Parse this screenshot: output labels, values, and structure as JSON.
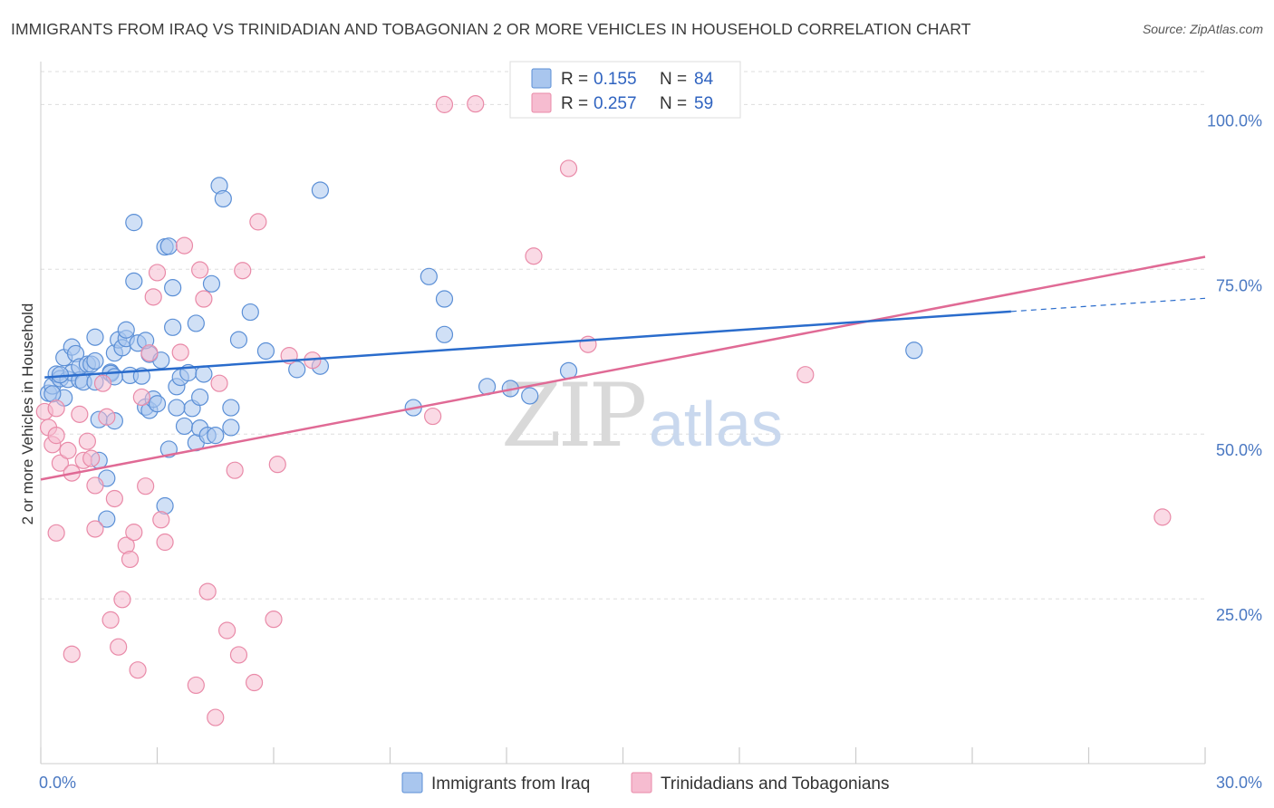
{
  "title": "IMMIGRANTS FROM IRAQ VS TRINIDADIAN AND TOBAGONIAN 2 OR MORE VEHICLES IN HOUSEHOLD CORRELATION CHART",
  "source": "Source: ZipAtlas.com",
  "watermark": {
    "zip": "ZIP",
    "atlas": "atlas"
  },
  "colors": {
    "iraq_fill": "#a9c6ee",
    "iraq_stroke": "#5b8fd6",
    "iraq_line": "#2a6ccc",
    "tt_fill": "#f6bcd0",
    "tt_stroke": "#e98aa8",
    "tt_line": "#e06a95",
    "grid": "#dddddd",
    "tick_text": "#4a78c2"
  },
  "legend": {
    "rows": [
      {
        "r_label": "R = ",
        "r_value": "0.155",
        "n_label": "N = ",
        "n_value": "84"
      },
      {
        "r_label": "R = ",
        "r_value": "0.257",
        "n_label": "N = ",
        "n_value": "59"
      }
    ]
  },
  "chart_data": {
    "type": "scatter",
    "title": "IMMIGRANTS FROM IRAQ VS TRINIDADIAN AND TOBAGONIAN 2 OR MORE VEHICLES IN HOUSEHOLD CORRELATION CHART",
    "xlabel": "",
    "ylabel": "2 or more Vehicles in Household",
    "xlim": [
      0,
      30
    ],
    "ylim": [
      0,
      105
    ],
    "x_tick_labels": [
      "0.0%",
      "30.0%"
    ],
    "y_ticks": [
      25,
      50,
      75,
      100
    ],
    "y_tick_labels": [
      "25.0%",
      "50.0%",
      "75.0%",
      "100.0%"
    ],
    "x_tick_marks": [
      0,
      3,
      6,
      9,
      12,
      15,
      18,
      21,
      24,
      27,
      30
    ],
    "grid": true,
    "legend_position": "top-center",
    "series": [
      {
        "name": "Immigrants from Iraq",
        "trend": {
          "x0": 0.1,
          "y0": 58.6,
          "x1": 25.0,
          "y1": 68.6,
          "dash_x1": 30.0,
          "dash_y1": 70.6
        },
        "points": [
          [
            0.2,
            56.2
          ],
          [
            0.3,
            57.3
          ],
          [
            0.4,
            59.1
          ],
          [
            0.5,
            58.4
          ],
          [
            0.6,
            55.5
          ],
          [
            0.6,
            61.6
          ],
          [
            0.7,
            58.3
          ],
          [
            0.8,
            63.2
          ],
          [
            0.8,
            59.3
          ],
          [
            0.9,
            62.2
          ],
          [
            1.0,
            58.2
          ],
          [
            1.0,
            60.2
          ],
          [
            1.1,
            57.9
          ],
          [
            1.2,
            60.6
          ],
          [
            1.3,
            60.6
          ],
          [
            1.4,
            61.1
          ],
          [
            1.4,
            64.7
          ],
          [
            1.4,
            57.9
          ],
          [
            1.5,
            46.0
          ],
          [
            1.5,
            52.2
          ],
          [
            1.7,
            43.3
          ],
          [
            1.7,
            37.1
          ],
          [
            1.8,
            59.4
          ],
          [
            1.8,
            59.2
          ],
          [
            1.9,
            62.3
          ],
          [
            1.9,
            52.0
          ],
          [
            2.0,
            64.3
          ],
          [
            2.1,
            63.1
          ],
          [
            2.2,
            64.5
          ],
          [
            2.2,
            65.8
          ],
          [
            2.3,
            58.9
          ],
          [
            2.4,
            73.2
          ],
          [
            2.4,
            82.1
          ],
          [
            2.5,
            63.8
          ],
          [
            2.6,
            58.8
          ],
          [
            2.7,
            54.1
          ],
          [
            2.8,
            53.6
          ],
          [
            2.8,
            62.1
          ],
          [
            2.9,
            55.3
          ],
          [
            3.0,
            54.6
          ],
          [
            3.1,
            61.2
          ],
          [
            3.2,
            39.1
          ],
          [
            3.2,
            78.4
          ],
          [
            3.3,
            78.5
          ],
          [
            3.3,
            47.7
          ],
          [
            3.4,
            72.2
          ],
          [
            3.4,
            66.2
          ],
          [
            3.5,
            57.2
          ],
          [
            3.6,
            58.6
          ],
          [
            3.7,
            51.2
          ],
          [
            3.8,
            59.3
          ],
          [
            3.9,
            53.9
          ],
          [
            4.0,
            48.7
          ],
          [
            4.0,
            66.8
          ],
          [
            4.1,
            55.6
          ],
          [
            4.1,
            50.9
          ],
          [
            4.2,
            59.1
          ],
          [
            4.3,
            49.8
          ],
          [
            4.4,
            72.8
          ],
          [
            4.5,
            49.8
          ],
          [
            4.6,
            87.7
          ],
          [
            4.7,
            85.7
          ],
          [
            4.9,
            54.0
          ],
          [
            4.9,
            51.0
          ],
          [
            5.1,
            64.3
          ],
          [
            5.4,
            68.5
          ],
          [
            5.8,
            62.6
          ],
          [
            6.6,
            59.8
          ],
          [
            7.2,
            60.3
          ],
          [
            7.2,
            87.0
          ],
          [
            9.6,
            54.0
          ],
          [
            10.0,
            73.9
          ],
          [
            10.4,
            65.1
          ],
          [
            10.4,
            70.5
          ],
          [
            11.5,
            57.2
          ],
          [
            12.1,
            56.9
          ],
          [
            12.6,
            55.8
          ],
          [
            13.6,
            59.6
          ],
          [
            22.5,
            62.7
          ],
          [
            0.3,
            56.1
          ],
          [
            0.5,
            59.0
          ],
          [
            1.9,
            58.7
          ],
          [
            2.7,
            64.2
          ],
          [
            3.5,
            54.0
          ]
        ]
      },
      {
        "name": "Trinidadians and Tobagonians",
        "trend": {
          "x0": 0.0,
          "y0": 43.1,
          "x1": 30.0,
          "y1": 76.9
        },
        "points": [
          [
            0.1,
            53.4
          ],
          [
            0.2,
            51.0
          ],
          [
            0.3,
            48.4
          ],
          [
            0.4,
            49.8
          ],
          [
            0.4,
            53.9
          ],
          [
            0.4,
            35.0
          ],
          [
            0.5,
            45.6
          ],
          [
            0.7,
            47.5
          ],
          [
            0.8,
            44.1
          ],
          [
            0.8,
            16.6
          ],
          [
            1.0,
            53.0
          ],
          [
            1.1,
            46.0
          ],
          [
            1.2,
            48.9
          ],
          [
            1.3,
            46.3
          ],
          [
            1.4,
            42.2
          ],
          [
            1.4,
            35.6
          ],
          [
            1.6,
            57.7
          ],
          [
            1.7,
            52.6
          ],
          [
            1.8,
            21.8
          ],
          [
            1.9,
            40.2
          ],
          [
            2.0,
            17.7
          ],
          [
            2.1,
            24.9
          ],
          [
            2.2,
            33.1
          ],
          [
            2.3,
            31.0
          ],
          [
            2.4,
            35.1
          ],
          [
            2.5,
            14.2
          ],
          [
            2.6,
            55.6
          ],
          [
            2.7,
            42.1
          ],
          [
            2.8,
            62.3
          ],
          [
            2.9,
            70.8
          ],
          [
            3.0,
            74.5
          ],
          [
            3.1,
            37.0
          ],
          [
            3.2,
            33.6
          ],
          [
            3.6,
            62.4
          ],
          [
            3.7,
            78.6
          ],
          [
            4.0,
            11.9
          ],
          [
            4.1,
            74.9
          ],
          [
            4.2,
            70.5
          ],
          [
            4.3,
            26.1
          ],
          [
            4.5,
            7.0
          ],
          [
            4.6,
            57.7
          ],
          [
            4.8,
            20.2
          ],
          [
            5.0,
            44.5
          ],
          [
            5.1,
            16.5
          ],
          [
            5.2,
            74.8
          ],
          [
            5.5,
            12.3
          ],
          [
            5.6,
            82.2
          ],
          [
            6.0,
            21.9
          ],
          [
            6.1,
            45.4
          ],
          [
            6.4,
            61.9
          ],
          [
            7.0,
            61.2
          ],
          [
            10.1,
            52.7
          ],
          [
            10.4,
            100.0
          ],
          [
            11.2,
            100.1
          ],
          [
            12.7,
            77.0
          ],
          [
            13.6,
            90.3
          ],
          [
            14.1,
            63.6
          ],
          [
            19.7,
            59.0
          ],
          [
            28.9,
            37.4
          ]
        ]
      }
    ]
  }
}
